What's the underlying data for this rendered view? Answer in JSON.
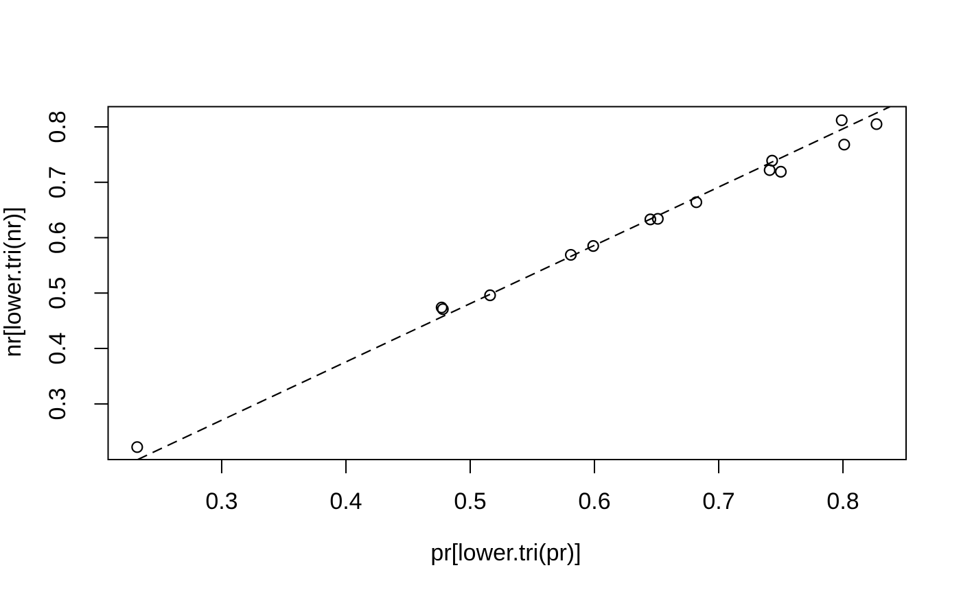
{
  "figure": {
    "background": "#ffffff",
    "foreground": "#000000"
  },
  "chart_data": {
    "type": "scatter",
    "title": "",
    "xlabel": "pr[lower.tri(pr)]",
    "ylabel": "nr[lower.tri(nr)]",
    "xlim": [
      0.2086,
      0.8508
    ],
    "ylim": [
      0.1995,
      0.8365
    ],
    "x_ticks": [
      0.3,
      0.4,
      0.5,
      0.6,
      0.7,
      0.8
    ],
    "x_tick_labels": [
      "0.3",
      "0.4",
      "0.5",
      "0.6",
      "0.7",
      "0.8"
    ],
    "y_ticks": [
      0.3,
      0.4,
      0.5,
      0.6,
      0.7,
      0.8
    ],
    "y_tick_labels": [
      "0.3",
      "0.4",
      "0.5",
      "0.6",
      "0.7",
      "0.8"
    ],
    "grid": false,
    "legend": "none",
    "marker": {
      "symbol": "open-circle",
      "color": "#000000"
    },
    "points": [
      {
        "x": 0.232,
        "y": 0.222
      },
      {
        "x": 0.477,
        "y": 0.474
      },
      {
        "x": 0.478,
        "y": 0.471
      },
      {
        "x": 0.516,
        "y": 0.496
      },
      {
        "x": 0.581,
        "y": 0.569
      },
      {
        "x": 0.599,
        "y": 0.585
      },
      {
        "x": 0.645,
        "y": 0.633
      },
      {
        "x": 0.651,
        "y": 0.634
      },
      {
        "x": 0.682,
        "y": 0.664
      },
      {
        "x": 0.741,
        "y": 0.722
      },
      {
        "x": 0.743,
        "y": 0.739
      },
      {
        "x": 0.75,
        "y": 0.719
      },
      {
        "x": 0.799,
        "y": 0.812
      },
      {
        "x": 0.801,
        "y": 0.768
      },
      {
        "x": 0.827,
        "y": 0.805
      }
    ],
    "trend_line": {
      "style": "dashed",
      "slope": 1.052,
      "intercept": -0.045
    }
  }
}
